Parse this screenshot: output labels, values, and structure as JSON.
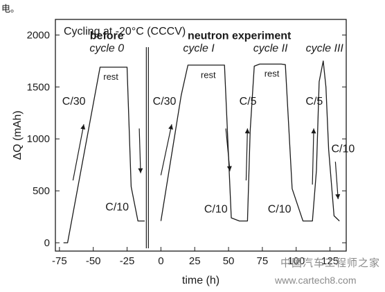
{
  "fragment_text": "电。",
  "watermark": {
    "chinese": "中国汽车工程师之家",
    "url": "www.cartech8.com"
  },
  "chart_data": {
    "type": "line",
    "title": "Cycling at -20°C (CCCV)",
    "xlabel": "time (h)",
    "ylabel": "ΔQ (mAh)",
    "xlim": [
      -78,
      137
    ],
    "ylim": [
      -80,
      2150
    ],
    "x_ticks": [
      -75,
      -50,
      -25,
      0,
      25,
      50,
      75,
      100,
      125
    ],
    "y_ticks": [
      0,
      500,
      1000,
      1500,
      2000
    ],
    "grid": false,
    "segments": [
      {
        "id": "before",
        "x": [
          -72,
          -69,
          -45,
          -37,
          -31,
          -25,
          -22,
          -17,
          -12
        ],
        "y": [
          0,
          0,
          1690,
          1690,
          1690,
          1690,
          540,
          210,
          210
        ]
      },
      {
        "id": "during",
        "x": [
          0,
          15,
          20,
          30,
          35,
          47,
          52,
          58,
          64,
          66,
          69,
          73,
          80,
          85,
          89,
          92,
          97,
          105,
          112,
          115,
          117,
          120,
          122,
          124,
          128,
          132
        ],
        "y": [
          210,
          1420,
          1710,
          1710,
          1710,
          1710,
          240,
          210,
          210,
          1080,
          1700,
          1720,
          1720,
          1720,
          1720,
          1715,
          520,
          210,
          210,
          700,
          1550,
          1750,
          1500,
          900,
          260,
          210
        ]
      }
    ],
    "break_x": -10,
    "annotations": [
      {
        "text": "before",
        "style": "bold",
        "x": -40,
        "y": 1960
      },
      {
        "text": "cycle 0",
        "style": "italic",
        "x": -40,
        "y": 1840
      },
      {
        "text": "neutron experiment",
        "style": "bold",
        "x": 58,
        "y": 1960
      },
      {
        "text": "cycle I",
        "style": "italic",
        "x": 28,
        "y": 1840
      },
      {
        "text": "cycle II",
        "style": "italic",
        "x": 81,
        "y": 1840
      },
      {
        "text": "cycle III",
        "style": "italic",
        "x": 121,
        "y": 1840
      },
      {
        "text": "rest",
        "style": "small",
        "x": -37,
        "y": 1570
      },
      {
        "text": "rest",
        "style": "small",
        "x": 35,
        "y": 1585
      },
      {
        "text": "rest",
        "style": "small",
        "x": 82,
        "y": 1600
      },
      {
        "text": "C/30",
        "style": "normal",
        "x": -73,
        "y": 1330
      },
      {
        "text": "C/30",
        "style": "normal",
        "x": -6,
        "y": 1330
      },
      {
        "text": "C/5",
        "style": "normal",
        "x": 58,
        "y": 1330
      },
      {
        "text": "C/5",
        "style": "normal",
        "x": 107,
        "y": 1330
      },
      {
        "text": "C/10",
        "style": "normal",
        "x": -41,
        "y": 310
      },
      {
        "text": "C/10",
        "style": "normal",
        "x": 32,
        "y": 290
      },
      {
        "text": "C/10",
        "style": "normal",
        "x": 79,
        "y": 290
      },
      {
        "text": "C/10",
        "style": "normal",
        "x": 126,
        "y": 870
      }
    ],
    "arrows": [
      {
        "direction": "up",
        "x": [
          -65,
          -57
        ],
        "y": [
          600,
          1140
        ]
      },
      {
        "direction": "down",
        "x": [
          -16,
          -15
        ],
        "y": [
          1100,
          670
        ]
      },
      {
        "direction": "up",
        "x": [
          0,
          8
        ],
        "y": [
          650,
          1140
        ]
      },
      {
        "direction": "down",
        "x": [
          48,
          51
        ],
        "y": [
          1100,
          690
        ]
      },
      {
        "direction": "up",
        "x": [
          63,
          64
        ],
        "y": [
          600,
          1100
        ]
      },
      {
        "direction": "up",
        "x": [
          112,
          113
        ],
        "y": [
          560,
          1100
        ]
      },
      {
        "direction": "down",
        "x": [
          129,
          131
        ],
        "y": [
          780,
          420
        ]
      }
    ]
  }
}
